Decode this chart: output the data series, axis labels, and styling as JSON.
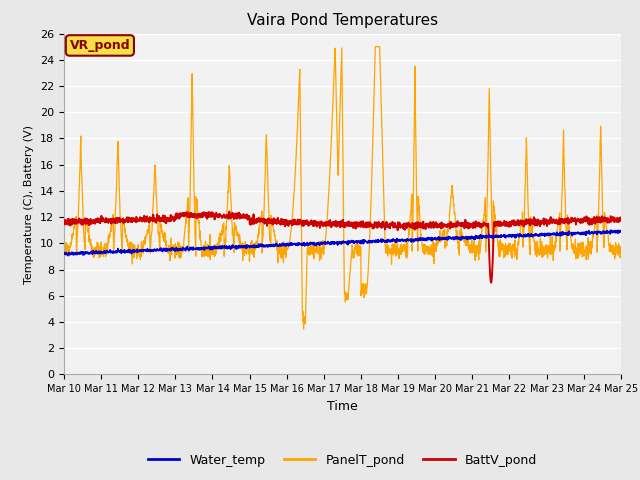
{
  "title": "Vaira Pond Temperatures",
  "xlabel": "Time",
  "ylabel": "Temperature (C), Battery (V)",
  "ylim": [
    0,
    26
  ],
  "yticks": [
    0,
    2,
    4,
    6,
    8,
    10,
    12,
    14,
    16,
    18,
    20,
    22,
    24,
    26
  ],
  "xtick_labels": [
    "Mar 10",
    "Mar 11",
    "Mar 12",
    "Mar 13",
    "Mar 14",
    "Mar 15",
    "Mar 16",
    "Mar 17",
    "Mar 18",
    "Mar 19",
    "Mar 20",
    "Mar 21",
    "Mar 22",
    "Mar 23",
    "Mar 24",
    "Mar 25"
  ],
  "annotation_text": "VR_pond",
  "annotation_color": "#8B0000",
  "annotation_bg": "#f5e048",
  "water_temp_color": "#0000cc",
  "panel_temp_color": "#FFA500",
  "batt_color": "#cc0000",
  "bg_color": "#e8e8e8",
  "plot_bg_color": "#f2f2f2",
  "grid_color": "#ffffff",
  "legend_labels": [
    "Water_temp",
    "PanelT_pond",
    "BattV_pond"
  ]
}
